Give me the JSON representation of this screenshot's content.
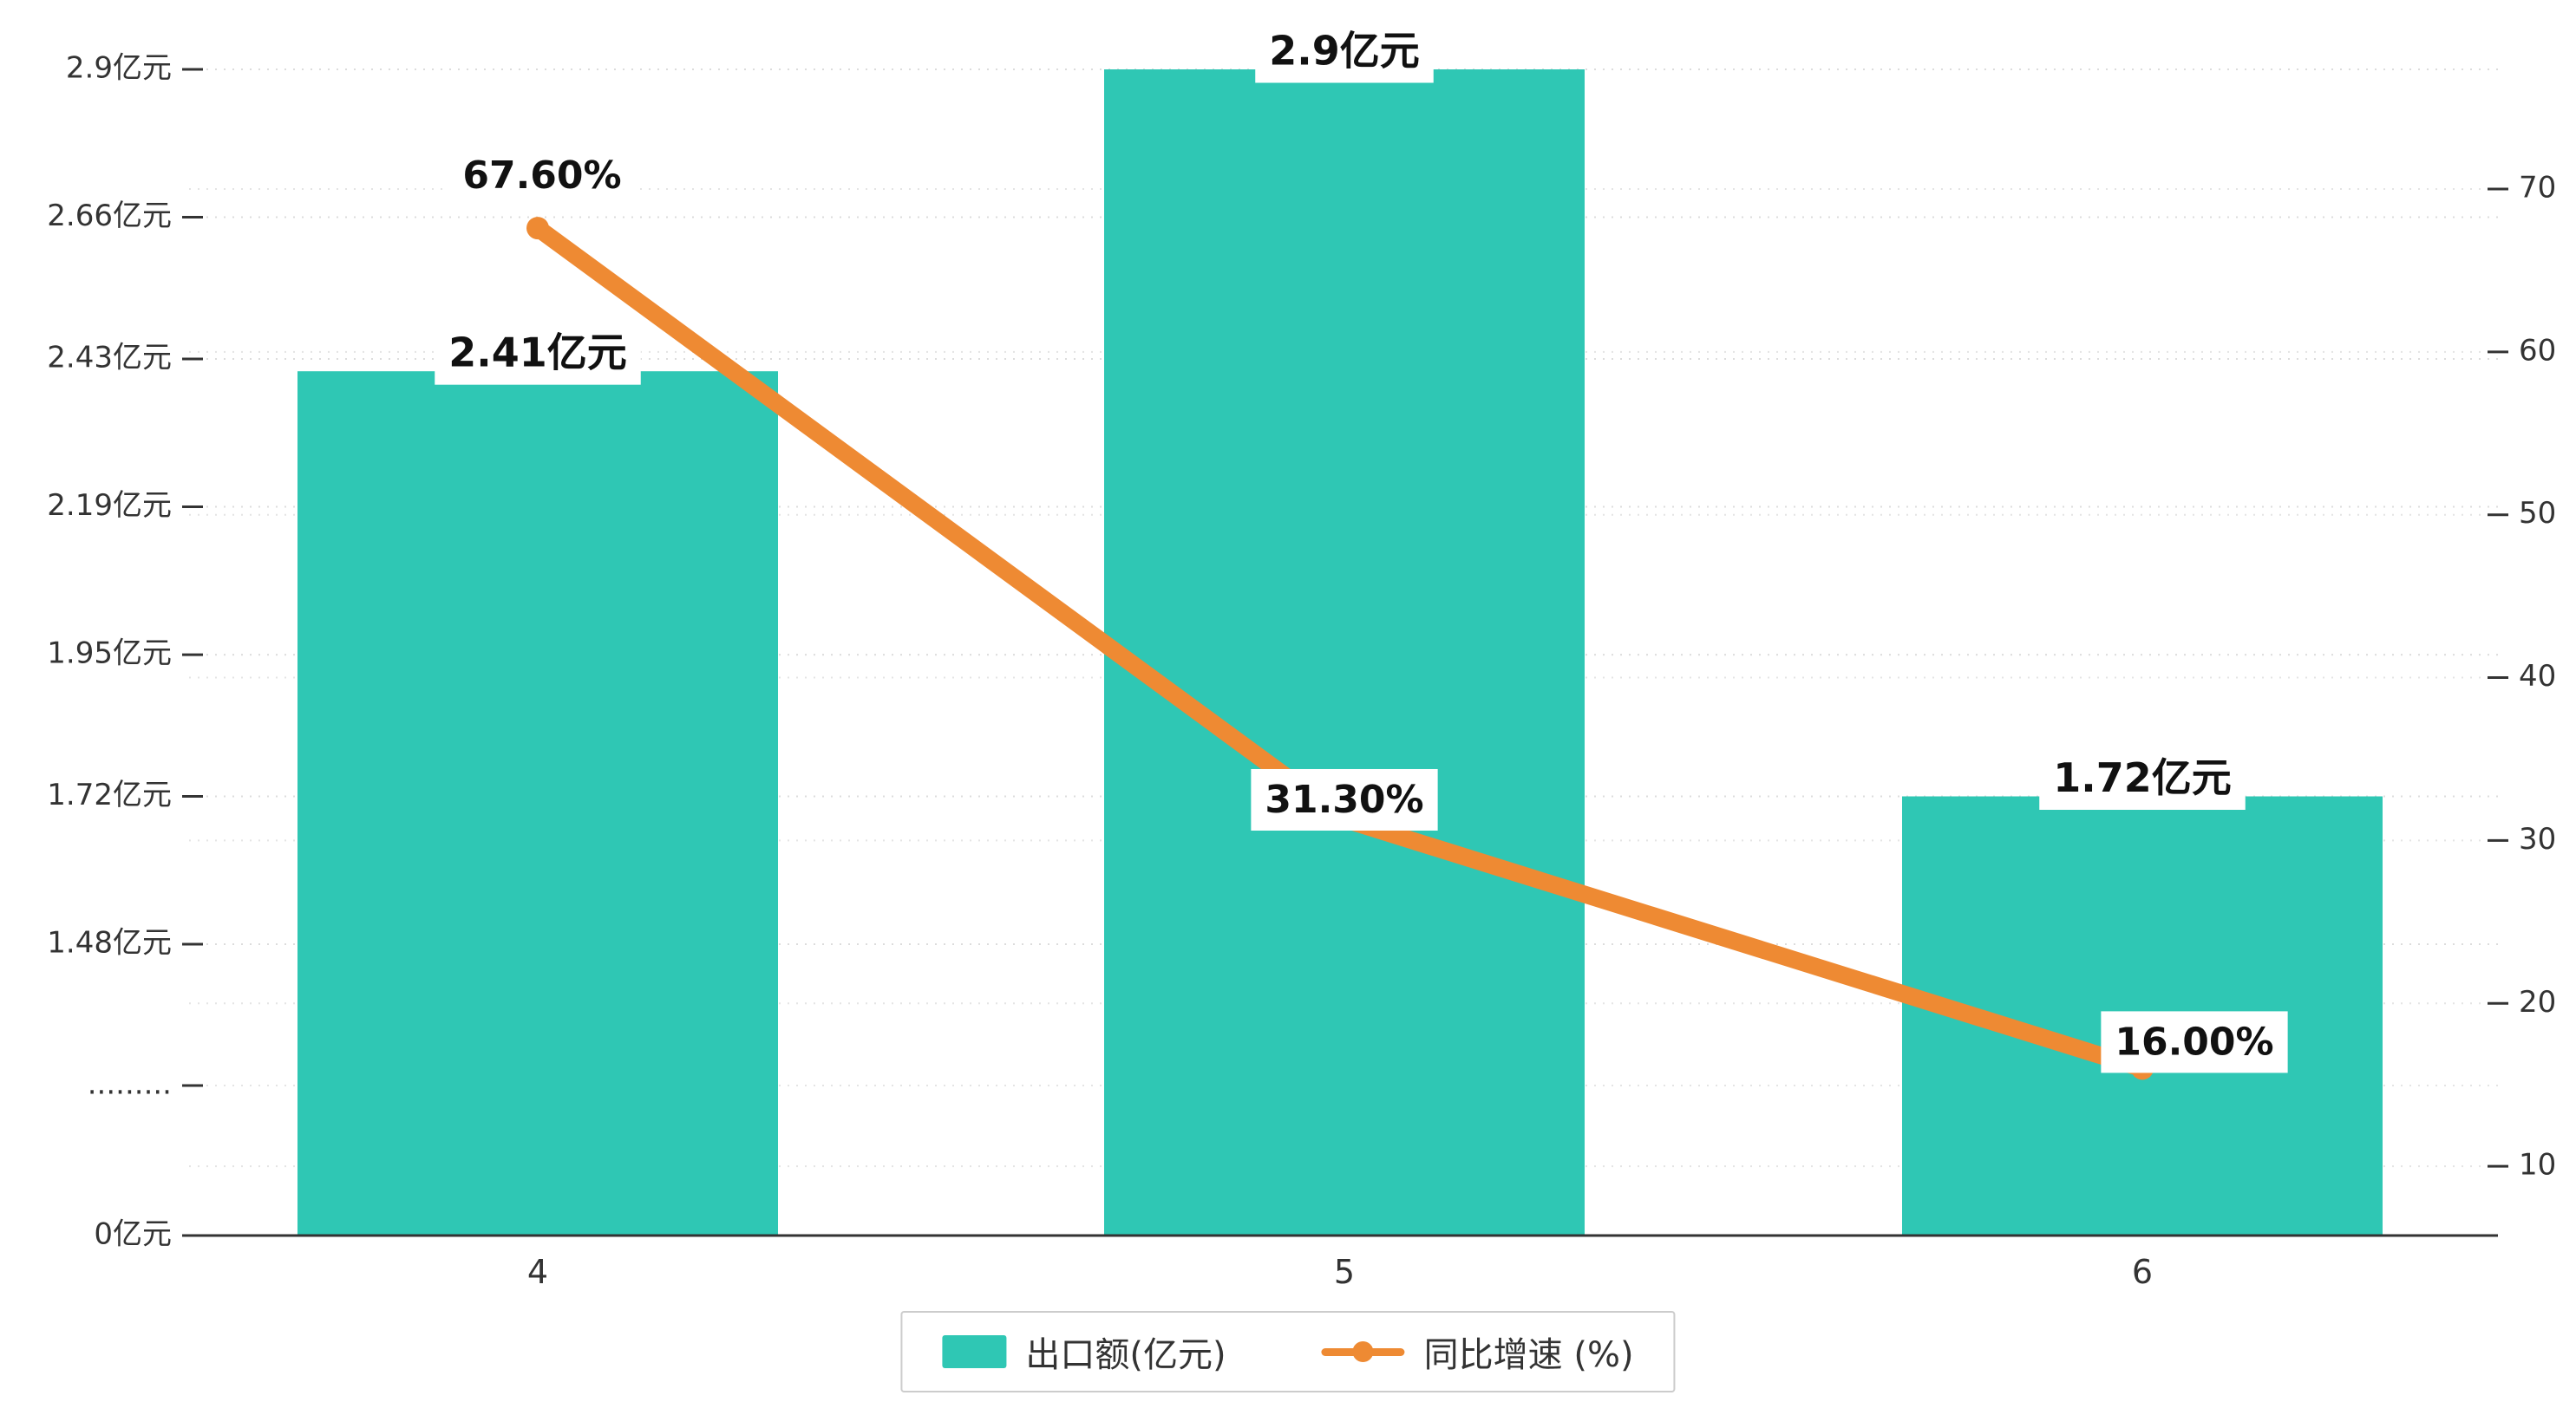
{
  "chart_data": {
    "type": "bar+line",
    "categories": [
      "4",
      "5",
      "6"
    ],
    "series": [
      {
        "name": "出口额(亿元)",
        "type": "bar",
        "axis": "left",
        "values": [
          2.41,
          2.9,
          1.72
        ],
        "value_labels": [
          "2.41亿元",
          "2.9亿元",
          "1.72亿元"
        ],
        "color": "#2FC7B4"
      },
      {
        "name": "同比增速 (%)",
        "type": "line",
        "axis": "right",
        "values": [
          67.6,
          31.3,
          16.0
        ],
        "value_labels": [
          "67.60%",
          "31.30%",
          "16.00%"
        ],
        "color": "#EE8A33"
      }
    ],
    "left_axis": {
      "unit": "亿元",
      "tick_labels": [
        "2.9亿元",
        "2.66亿元",
        "2.43亿元",
        "2.19亿元",
        "1.95亿元",
        "1.72亿元",
        "1.48亿元",
        ".........",
        "0亿元"
      ],
      "tick_values": [
        2.9,
        2.66,
        2.43,
        2.19,
        1.95,
        1.72,
        1.48,
        null,
        0
      ],
      "has_break": true
    },
    "right_axis": {
      "unit": "%",
      "tick_values": [
        70,
        60,
        50,
        40,
        30,
        20,
        10
      ]
    },
    "legend": {
      "items": [
        "出口额(亿元)",
        "同比增速 (%)"
      ]
    },
    "grid": "dashed-horizontal",
    "xlabel": "",
    "ylabel": ""
  }
}
